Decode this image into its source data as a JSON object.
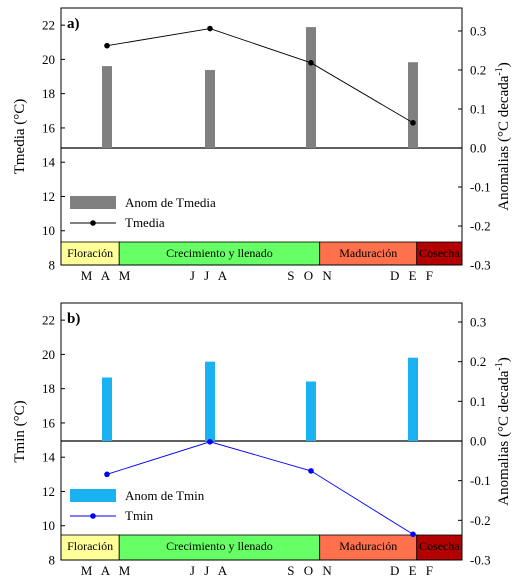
{
  "chart_data": [
    {
      "type": "bar+line",
      "panel_label": "a)",
      "ylabel_left": "Tmedia (°C)",
      "ylabel_right_main": "Anomalias (°C decada",
      "ylabel_right_sup": "-1",
      "ylabel_right_end": ")",
      "ylim_left": [
        8,
        23
      ],
      "yticks_left": [
        8,
        10,
        12,
        14,
        16,
        18,
        20,
        22
      ],
      "ylim_right": [
        -0.3,
        0.35
      ],
      "yticks_right": [
        -0.3,
        -0.2,
        -0.1,
        0.0,
        0.1,
        0.2,
        0.3
      ],
      "ytick_labels_right": [
        "-0.3",
        "-0.2",
        "-0.1",
        "0.0",
        "0.1",
        "0.2",
        "0.3"
      ],
      "categories": [
        "M A M",
        "J J A",
        "S O N",
        "D E F"
      ],
      "series": [
        {
          "name": "Anom de Tmedia",
          "kind": "bar",
          "axis": "right",
          "color": "#808080",
          "values": [
            0.21,
            0.2,
            0.31,
            0.22
          ]
        },
        {
          "name": "Tmedia",
          "kind": "line",
          "axis": "left",
          "color": "#000000",
          "values": [
            20.8,
            21.8,
            19.8,
            16.3
          ]
        }
      ],
      "legend_position": "lower-left",
      "phases": [
        {
          "label": "Floración",
          "color": "#ffff99",
          "from": 0,
          "to": 0.45
        },
        {
          "label": "Crecimiento y llenado",
          "color": "#66ff66",
          "from": 0.45,
          "to": 2.0
        },
        {
          "label": "Maduración",
          "color": "#ff704d",
          "from": 2.0,
          "to": 2.75
        },
        {
          "label": "Cosecha",
          "color": "#b30000",
          "from": 2.75,
          "to": 3.1
        }
      ]
    },
    {
      "type": "bar+line",
      "panel_label": "b)",
      "ylabel_left": "Tmin (°C)",
      "ylabel_right_main": "Anomalias (°C decada",
      "ylabel_right_sup": "-1",
      "ylabel_right_end": ")",
      "ylim_left": [
        8,
        23
      ],
      "yticks_left": [
        8,
        10,
        12,
        14,
        16,
        18,
        20,
        22
      ],
      "ylim_right": [
        -0.3,
        0.35
      ],
      "yticks_right": [
        -0.3,
        -0.2,
        -0.1,
        0.0,
        0.1,
        0.2,
        0.3
      ],
      "ytick_labels_right": [
        "-0.3",
        "-0.2",
        "-0.1",
        "0.0",
        "0.1",
        "0.2",
        "0.3"
      ],
      "categories": [
        "M A M",
        "J J A",
        "S O N",
        "D E F"
      ],
      "series": [
        {
          "name": "Anom de Tmin",
          "kind": "bar",
          "axis": "right",
          "color": "#1ab2f0",
          "values": [
            0.16,
            0.2,
            0.15,
            0.21
          ]
        },
        {
          "name": "Tmin",
          "kind": "line",
          "axis": "left",
          "color": "#0000ff",
          "values": [
            13.0,
            14.9,
            13.2,
            9.5
          ]
        }
      ],
      "legend_position": "lower-left",
      "phases": [
        {
          "label": "Floración",
          "color": "#ffff99",
          "from": 0,
          "to": 0.45
        },
        {
          "label": "Crecimiento y llenado",
          "color": "#66ff66",
          "from": 0.45,
          "to": 2.0
        },
        {
          "label": "Maduración",
          "color": "#ff704d",
          "from": 2.0,
          "to": 2.75
        },
        {
          "label": "Cosecha",
          "color": "#b30000",
          "from": 2.75,
          "to": 3.1
        }
      ]
    }
  ]
}
